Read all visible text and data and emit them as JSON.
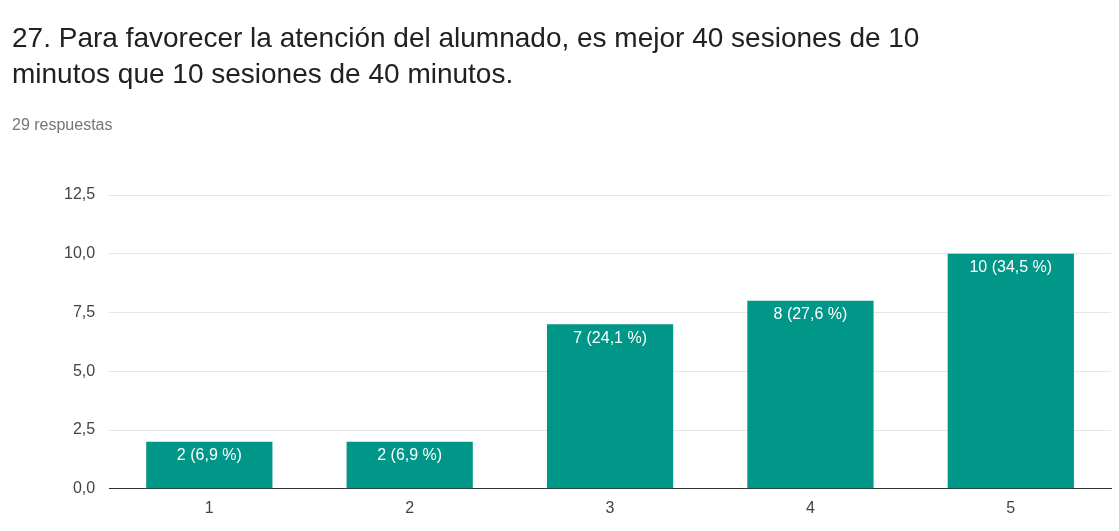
{
  "chart_data": {
    "type": "bar",
    "title": "27. Para favorecer la atención del alumnado, es mejor 40 sesiones de 10 minutos que 10 sesiones de 40 minutos.",
    "subtitle": "29 respuestas",
    "categories": [
      "1",
      "2",
      "3",
      "4",
      "5"
    ],
    "values": [
      2,
      2,
      7,
      8,
      10
    ],
    "value_labels": [
      "2 (6,9 %)",
      "2 (6,9 %)",
      "7 (24,1 %)",
      "8 (27,6 %)",
      "10 (34,5 %)"
    ],
    "color": "#009688",
    "ylim": [
      0,
      12.5
    ],
    "yticks": [
      {
        "value": 0,
        "label": "0,0"
      },
      {
        "value": 2.5,
        "label": "2,5"
      },
      {
        "value": 5,
        "label": "5,0"
      },
      {
        "value": 7.5,
        "label": "7,5"
      },
      {
        "value": 10,
        "label": "10,0"
      },
      {
        "value": 12.5,
        "label": "12,5"
      }
    ],
    "grid": "y",
    "legend": false
  }
}
